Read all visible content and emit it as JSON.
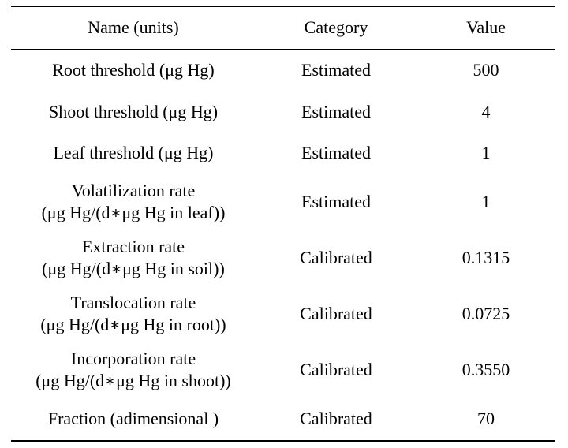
{
  "table": {
    "headers": [
      "Name (units)",
      "Category",
      "Value"
    ],
    "rows": [
      {
        "name": [
          "Root threshold (μg Hg)"
        ],
        "category": "Estimated",
        "value": "500"
      },
      {
        "name": [
          "Shoot threshold (μg Hg)"
        ],
        "category": "Estimated",
        "value": "4"
      },
      {
        "name": [
          "Leaf threshold (μg Hg)"
        ],
        "category": "Estimated",
        "value": "1"
      },
      {
        "name": [
          "Volatilization rate",
          "(μg Hg/(d∗μg Hg in leaf))"
        ],
        "category": "Estimated",
        "value": "1"
      },
      {
        "name": [
          "Extraction rate",
          "(μg Hg/(d∗μg Hg in soil))"
        ],
        "category": "Calibrated",
        "value": "0.1315"
      },
      {
        "name": [
          "Translocation rate",
          "(μg Hg/(d∗μg Hg in root))"
        ],
        "category": "Calibrated",
        "value": "0.0725"
      },
      {
        "name": [
          "Incorporation rate",
          "(μg Hg/(d∗μg Hg in shoot))"
        ],
        "category": "Calibrated",
        "value": "0.3550"
      },
      {
        "name": [
          "Fraction (adimensional )"
        ],
        "category": "Calibrated",
        "value": "70"
      }
    ]
  }
}
